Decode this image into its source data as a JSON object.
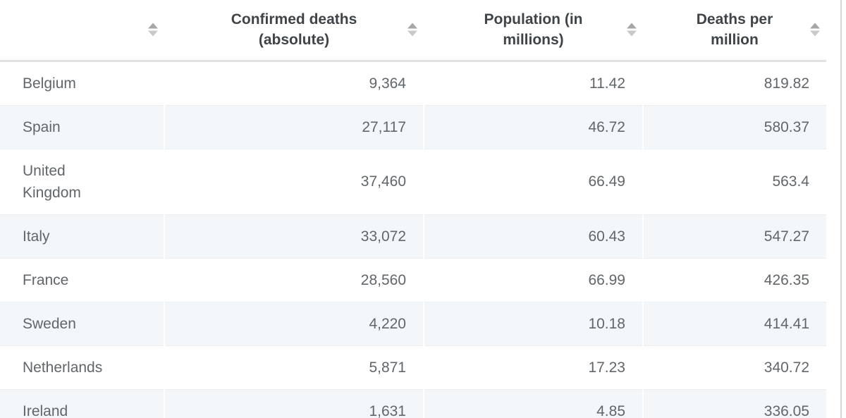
{
  "table": {
    "columns": [
      {
        "label": "",
        "name": "country",
        "sortable": true
      },
      {
        "label": "Confirmed deaths (absolute)",
        "name": "confirmed-deaths",
        "sortable": true
      },
      {
        "label": "Population (in millions)",
        "name": "population",
        "sortable": true
      },
      {
        "label": "Deaths per million",
        "name": "deaths-per-million",
        "sortable": true
      }
    ],
    "rows": [
      {
        "country": "Belgium",
        "confirmed_deaths": "9,364",
        "population_millions": "11.42",
        "deaths_per_million": "819.82"
      },
      {
        "country": "Spain",
        "confirmed_deaths": "27,117",
        "population_millions": "46.72",
        "deaths_per_million": "580.37"
      },
      {
        "country": "United Kingdom",
        "confirmed_deaths": "37,460",
        "population_millions": "66.49",
        "deaths_per_million": "563.4"
      },
      {
        "country": "Italy",
        "confirmed_deaths": "33,072",
        "population_millions": "60.43",
        "deaths_per_million": "547.27"
      },
      {
        "country": "France",
        "confirmed_deaths": "28,560",
        "population_millions": "66.99",
        "deaths_per_million": "426.35"
      },
      {
        "country": "Sweden",
        "confirmed_deaths": "4,220",
        "population_millions": "10.18",
        "deaths_per_million": "414.41"
      },
      {
        "country": "Netherlands",
        "confirmed_deaths": "5,871",
        "population_millions": "17.23",
        "deaths_per_million": "340.72"
      },
      {
        "country": "Ireland",
        "confirmed_deaths": "1,631",
        "population_millions": "4.85",
        "deaths_per_million": "336.05"
      }
    ]
  },
  "colors": {
    "stripe_row": "#f3f7f9",
    "row_border": "#ededee",
    "header_border": "#e2e2e4",
    "header_text": "#3f4448",
    "body_text": "#61666a",
    "caret_up": "#a6a6a6",
    "caret_down": "#c9c9c9",
    "right_edge": "#d6d6d8"
  },
  "icons": {
    "sort": "sort-carets-icon"
  }
}
